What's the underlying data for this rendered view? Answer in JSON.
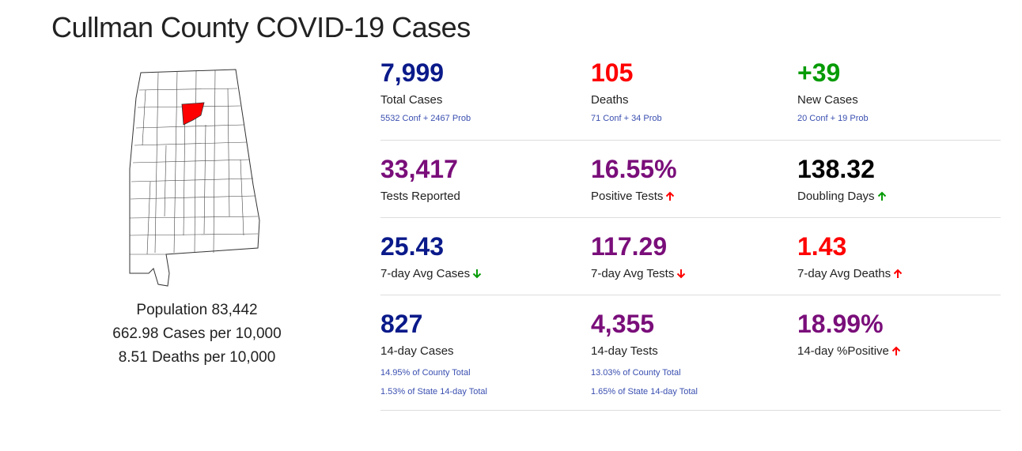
{
  "page": {
    "title": "Cullman County COVID-19 Cases"
  },
  "colors": {
    "navy": "#0a1a8a",
    "red": "#ff0000",
    "green": "#069b06",
    "purple": "#7a0e7a",
    "black": "#000000",
    "sub": "#3a4fb0",
    "county_fill": "#ff0000",
    "state_fill": "#ffffff",
    "border": "#333333"
  },
  "map": {
    "highlighted_county": "Cullman"
  },
  "summary": {
    "population": "Population 83,442",
    "cases_per": "662.98 Cases per 10,000",
    "deaths_per": "8.51 Deaths per 10,000"
  },
  "stats": [
    [
      {
        "value": "7,999",
        "label": "Total Cases",
        "color": "navy",
        "subs": [
          "5532 Conf + 2467 Prob"
        ],
        "arrow": ""
      },
      {
        "value": "105",
        "label": "Deaths",
        "color": "red",
        "subs": [
          "71 Conf + 34 Prob"
        ],
        "arrow": ""
      },
      {
        "value": "+39",
        "label": "New Cases",
        "color": "green",
        "subs": [
          "20 Conf + 19 Prob"
        ],
        "arrow": ""
      }
    ],
    [
      {
        "value": "33,417",
        "label": "Tests Reported",
        "color": "purple",
        "subs": [],
        "arrow": ""
      },
      {
        "value": "16.55%",
        "label": "Positive Tests",
        "color": "purple",
        "subs": [],
        "arrow": "up-red"
      },
      {
        "value": "138.32",
        "label": "Doubling Days",
        "color": "black",
        "subs": [],
        "arrow": "up-green"
      }
    ],
    [
      {
        "value": "25.43",
        "label": "7-day Avg Cases",
        "color": "navy",
        "subs": [],
        "arrow": "down-green"
      },
      {
        "value": "117.29",
        "label": "7-day Avg Tests",
        "color": "purple",
        "subs": [],
        "arrow": "down-red"
      },
      {
        "value": "1.43",
        "label": "7-day Avg Deaths",
        "color": "red",
        "subs": [],
        "arrow": "up-red"
      }
    ],
    [
      {
        "value": "827",
        "label": "14-day Cases",
        "color": "navy",
        "subs": [
          "14.95% of County Total",
          "1.53% of State 14-day Total"
        ],
        "arrow": ""
      },
      {
        "value": "4,355",
        "label": "14-day Tests",
        "color": "purple",
        "subs": [
          "13.03% of County Total",
          "1.65% of State 14-day Total"
        ],
        "arrow": ""
      },
      {
        "value": "18.99%",
        "label": "14-day %Positive",
        "color": "purple",
        "subs": [],
        "arrow": "up-red"
      }
    ]
  ]
}
